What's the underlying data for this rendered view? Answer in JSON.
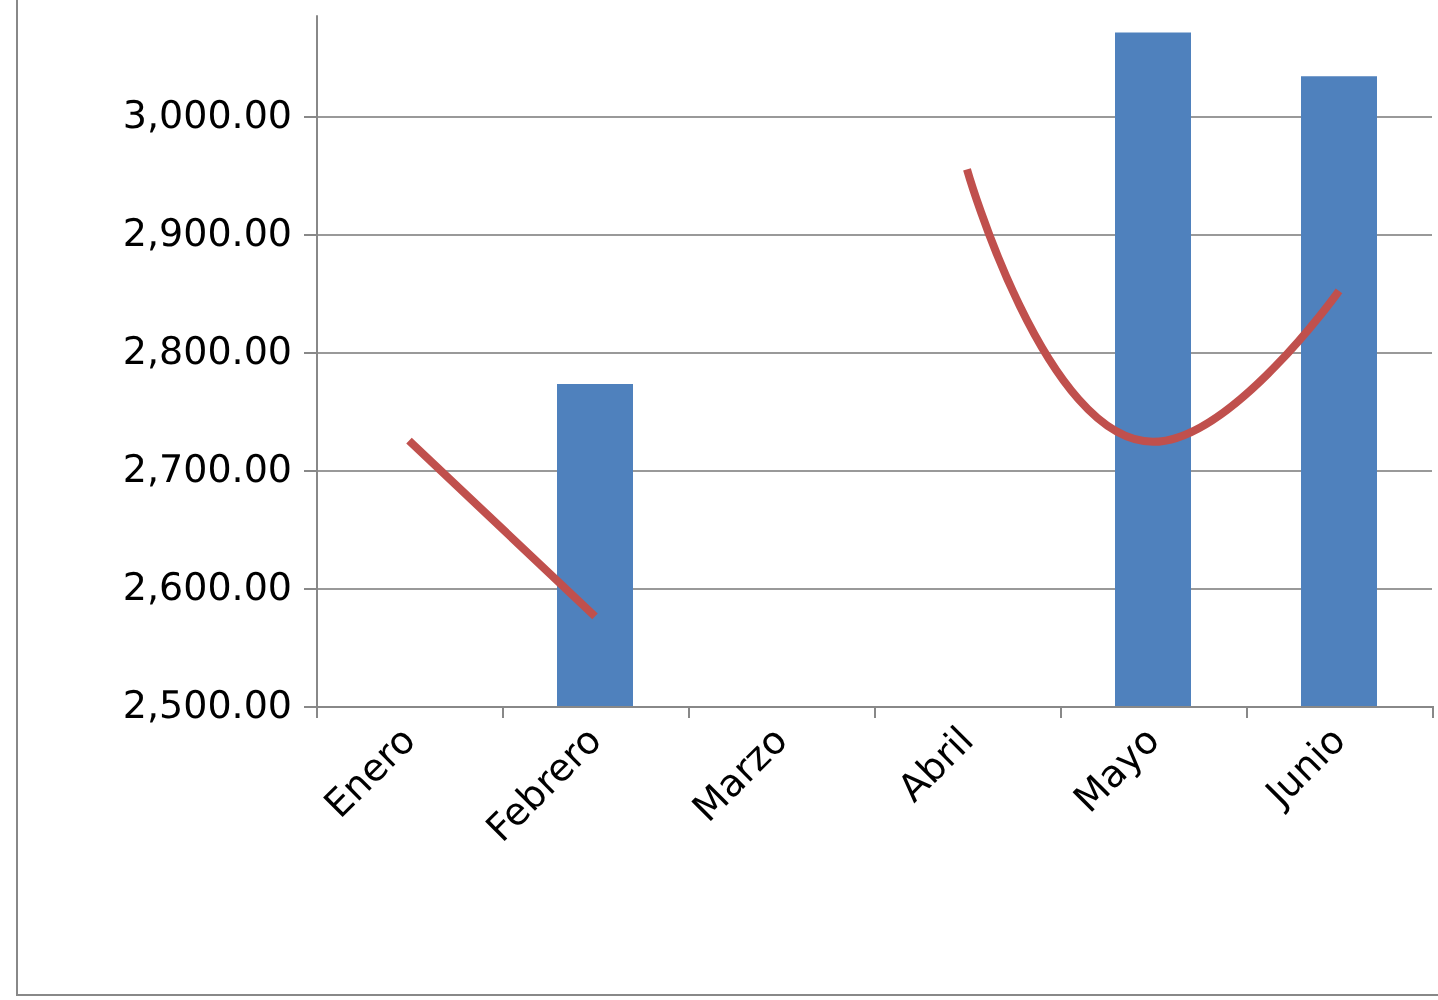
{
  "chart_data": {
    "type": "bar",
    "categories": [
      "Enero",
      "Febrero",
      "Marzo",
      "Abril",
      "Mayo",
      "Junio"
    ],
    "series": [
      {
        "color": "#4f81bd",
        "values": [
          null,
          2773,
          null,
          null,
          3071,
          3034
        ]
      },
      {
        "type": "line",
        "color": "#c0504d",
        "values": [
          2725,
          2576,
          null,
          2955,
          2724,
          2852
        ]
      }
    ],
    "ylim": [
      2500,
      3085
    ],
    "yticks": [
      {
        "value": 2500,
        "label": "2,500.00"
      },
      {
        "value": 2600,
        "label": "2,600.00"
      },
      {
        "value": 2700,
        "label": "2,700.00"
      },
      {
        "value": 2800,
        "label": "2,800.00"
      },
      {
        "value": 2900,
        "label": "2,900.00"
      },
      {
        "value": 3000,
        "label": "3,000.00"
      }
    ],
    "grid": "y",
    "marker": "none",
    "line_style": "solid"
  }
}
